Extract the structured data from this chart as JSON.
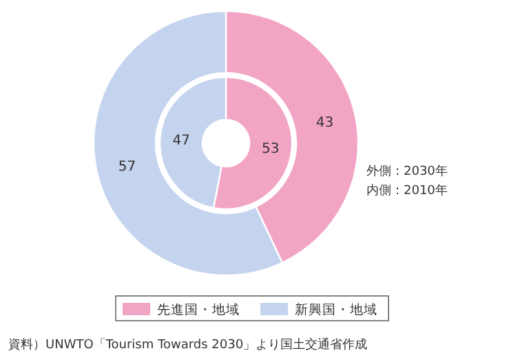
{
  "chart_data": {
    "type": "donut",
    "categories": [
      "先進国・地域",
      "新興国・地域"
    ],
    "colors": [
      "#f2a4c4",
      "#c5d4ee"
    ],
    "series": [
      {
        "values": [
          43,
          57
        ]
      },
      {
        "values": [
          53,
          47
        ]
      }
    ],
    "data_labels": true,
    "legend": "bottom",
    "annotations": [
      "外側：2030年",
      "内側：2010年",
      "資料）UNWTO「Tourism Towards 2030」より国土交通省作成"
    ]
  }
}
